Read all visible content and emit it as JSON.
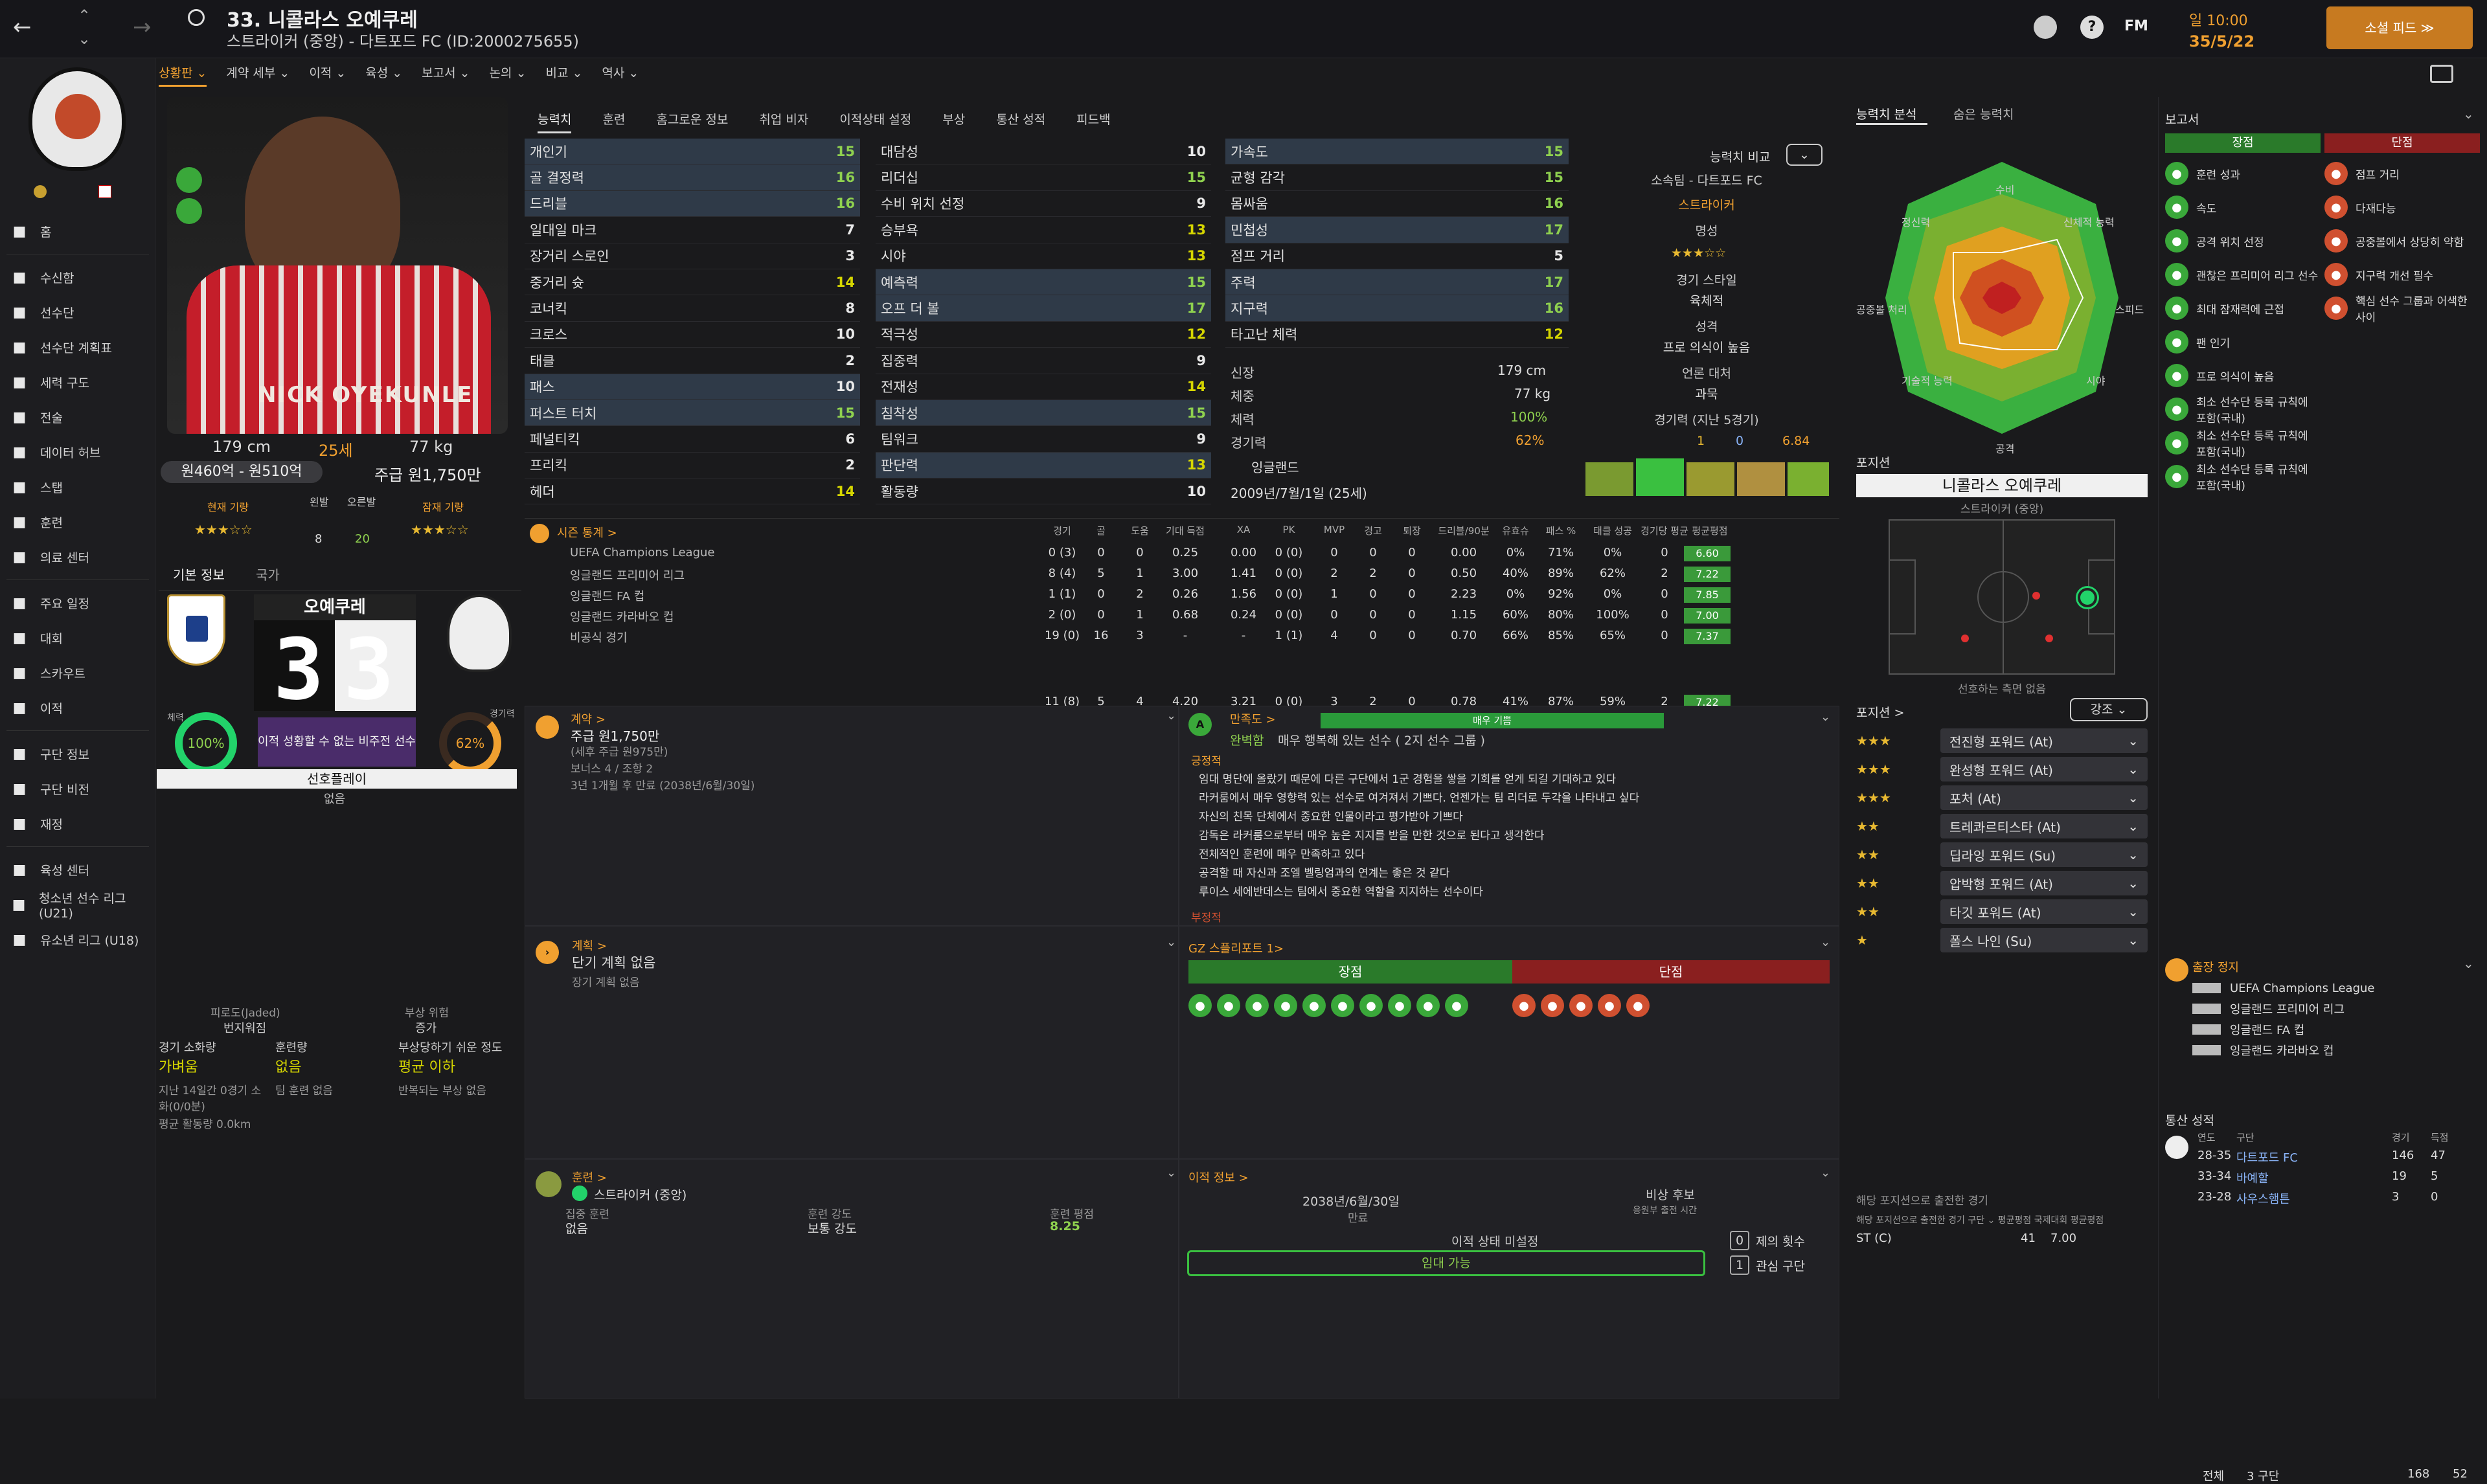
{
  "header": {
    "player_number_name": "33. 니콜라스 오예쿠레",
    "subtitle": "스트라이커 (중앙) - 다트포드 FC (ID:2000275655)",
    "fm_label": "FM",
    "date_top": "일 10:00",
    "date_bottom": "35/5/22",
    "continue_button": "소셜 피드 ≫"
  },
  "nav": {
    "items": [
      {
        "label": "홈",
        "icon": "home-icon"
      },
      {
        "label": "수신함",
        "icon": "inbox-icon"
      },
      {
        "label": "선수단",
        "icon": "squad-icon"
      },
      {
        "label": "선수단 계획표",
        "icon": "planner-icon"
      },
      {
        "label": "세력 구도",
        "icon": "dynamics-icon"
      },
      {
        "label": "전술",
        "icon": "tactics-icon"
      },
      {
        "label": "데이터 허브",
        "icon": "data-hub-icon"
      },
      {
        "label": "스탭",
        "icon": "staff-icon"
      },
      {
        "label": "훈련",
        "icon": "training-icon"
      },
      {
        "label": "의료 센터",
        "icon": "medical-icon"
      },
      {
        "label": "주요 일정",
        "icon": "schedule-icon"
      },
      {
        "label": "대회",
        "icon": "trophy-icon"
      },
      {
        "label": "스카우트",
        "icon": "scouting-icon"
      },
      {
        "label": "이적",
        "icon": "transfer-icon"
      },
      {
        "label": "구단 정보",
        "icon": "club-info-icon"
      },
      {
        "label": "구단 비전",
        "icon": "club-vision-icon"
      },
      {
        "label": "재정",
        "icon": "finance-icon"
      },
      {
        "label": "육성 센터",
        "icon": "development-icon"
      },
      {
        "label": "청소년 선수 리그 (U21)",
        "icon": "u21-icon"
      },
      {
        "label": "유소년 리그 (U18)",
        "icon": "u18-icon"
      }
    ]
  },
  "subnav": [
    "상황판 ⌄",
    "계약 세부 ⌄",
    "이적 ⌄",
    "육성 ⌄",
    "보고서 ⌄",
    "논의 ⌄",
    "비교 ⌄",
    "역사 ⌄"
  ],
  "tabs": [
    "능력치",
    "훈련",
    "홈그로운 정보",
    "취업 비자",
    "이적상태 설정",
    "부상",
    "통산 성적",
    "피드백"
  ],
  "player": {
    "height": "179 cm",
    "age": "25세",
    "weight": "77 kg",
    "value": "원460억 - 원510억",
    "wage": "주급 원1,750만",
    "current_ability_label": "현재 기량",
    "potential_label": "잠재 기량",
    "left_foot_label": "왼발",
    "right_foot_label": "오른발",
    "left_foot_value": "8",
    "right_foot_value": "20",
    "shirt_name": "NICK OYEKUNLE",
    "squad_number": "33",
    "squad_name": "오예쿠레",
    "basic_tab": "기본 정보",
    "nation_tab": "국가",
    "fitness_pct": "100%",
    "fitness_label": "체력",
    "sharpness_pct": "62%",
    "sharpness_label": "경기력",
    "transfer_banner": "이적 성황할 수 없는 비주전 선수",
    "preferred_play": "선호플레이",
    "preferred_value": "없음",
    "jaded_label": "피로도(Jaded)",
    "jaded_value": "번지워짐",
    "injury_label": "부상 위험",
    "injury_value": "증가",
    "match_load_label": "경기 소화량",
    "match_load_value": "가벼움",
    "training_load_label": "훈련량",
    "training_load_value": "없음",
    "injury_prone_label": "부상당하기 쉬운 정도",
    "injury_prone_value": "평균 이하",
    "match_note": "지난 14일간 0경기 소화(0/0분)",
    "training_note": "팀 훈련 없음",
    "injury_note": "반복되는 부상 없음",
    "distance": "평균 활동량 0.0km"
  },
  "attributes": {
    "technical": [
      {
        "name": "개인기",
        "value": "15",
        "cls": "g",
        "hl": true
      },
      {
        "name": "골 결정력",
        "value": "16",
        "cls": "g",
        "hl": true
      },
      {
        "name": "드리블",
        "value": "16",
        "cls": "g",
        "hl": true
      },
      {
        "name": "일대일 마크",
        "value": "7",
        "cls": "w",
        "hl": false
      },
      {
        "name": "장거리 스로인",
        "value": "3",
        "cls": "w",
        "hl": false
      },
      {
        "name": "중거리 슛",
        "value": "14",
        "cls": "y",
        "hl": false
      },
      {
        "name": "코너킥",
        "value": "8",
        "cls": "w",
        "hl": false
      },
      {
        "name": "크로스",
        "value": "10",
        "cls": "w",
        "hl": false
      },
      {
        "name": "태클",
        "value": "2",
        "cls": "w",
        "hl": false
      },
      {
        "name": "패스",
        "value": "10",
        "cls": "w",
        "hl": true
      },
      {
        "name": "퍼스트 터치",
        "value": "15",
        "cls": "g",
        "hl": true
      },
      {
        "name": "페널티킥",
        "value": "6",
        "cls": "w",
        "hl": false
      },
      {
        "name": "프리킥",
        "value": "2",
        "cls": "w",
        "hl": false
      },
      {
        "name": "헤더",
        "value": "14",
        "cls": "y",
        "hl": false
      }
    ],
    "mental": [
      {
        "name": "대담성",
        "value": "10",
        "cls": "w",
        "hl": false
      },
      {
        "name": "리더십",
        "value": "15",
        "cls": "g",
        "hl": false
      },
      {
        "name": "수비 위치 선정",
        "value": "9",
        "cls": "w",
        "hl": false
      },
      {
        "name": "승부욕",
        "value": "13",
        "cls": "y",
        "hl": false
      },
      {
        "name": "시야",
        "value": "13",
        "cls": "y",
        "hl": false
      },
      {
        "name": "예측력",
        "value": "15",
        "cls": "g",
        "hl": true
      },
      {
        "name": "오프 더 볼",
        "value": "17",
        "cls": "g",
        "hl": true
      },
      {
        "name": "적극성",
        "value": "12",
        "cls": "y",
        "hl": false
      },
      {
        "name": "집중력",
        "value": "9",
        "cls": "w",
        "hl": false
      },
      {
        "name": "전재성",
        "value": "14",
        "cls": "y",
        "hl": false
      },
      {
        "name": "침착성",
        "value": "15",
        "cls": "g",
        "hl": true
      },
      {
        "name": "팀워크",
        "value": "9",
        "cls": "w",
        "hl": false
      },
      {
        "name": "판단력",
        "value": "13",
        "cls": "y",
        "hl": true
      },
      {
        "name": "활동량",
        "value": "10",
        "cls": "w",
        "hl": false
      }
    ],
    "physical": [
      {
        "name": "가속도",
        "value": "15",
        "cls": "g",
        "hl": true
      },
      {
        "name": "균형 감각",
        "value": "15",
        "cls": "g",
        "hl": false
      },
      {
        "name": "몸싸움",
        "value": "16",
        "cls": "g",
        "hl": false
      },
      {
        "name": "민첩성",
        "value": "17",
        "cls": "g",
        "hl": true
      },
      {
        "name": "점프 거리",
        "value": "5",
        "cls": "w",
        "hl": false
      },
      {
        "name": "주력",
        "value": "17",
        "cls": "g",
        "hl": true
      },
      {
        "name": "지구력",
        "value": "16",
        "cls": "g",
        "hl": true
      },
      {
        "name": "타고난 체력",
        "value": "12",
        "cls": "y",
        "hl": false
      }
    ]
  },
  "info": {
    "compare_label": "능력치 비교",
    "club": "소속팀 - 다트포드 FC",
    "position": "스트라이커",
    "fame_label": "명성",
    "style_label": "경기 스타일",
    "style_value": "육체적",
    "personality_label": "성격",
    "personality_value": "프로 의식이 높음",
    "media_label": "언론 대처",
    "media_value": "과묵",
    "form_label": "경기력 (지난 5경기)",
    "goals": "1",
    "assists": "0",
    "rating": "6.84",
    "height_label": "신장",
    "height_value": "179 cm",
    "weight_label": "체중",
    "weight_value": "77 kg",
    "fitness_label": "체력",
    "fitness_value": "100%",
    "sharp_label": "경기력",
    "sharp_value": "62%",
    "nation": "잉글랜드",
    "dob": "2009년/7월/1일 (25세)"
  },
  "stats": {
    "title": "시즌 통계 >",
    "headers": [
      "경기",
      "골",
      "도움",
      "기대 득점",
      "XA",
      "PK",
      "MVP",
      "경고",
      "퇴장",
      "드리블/90분",
      "유효슈",
      "패스 %",
      "태클 성공",
      "경기당 평균",
      "평균평점"
    ],
    "rows": [
      {
        "comp": "UEFA Champions League",
        "v": [
          "0 (3)",
          "0",
          "0",
          "0.25",
          "0.00",
          "0 (0)",
          "0",
          "0",
          "0",
          "0.00",
          "0%",
          "71%",
          "0%",
          "0"
        ],
        "r": "6.60"
      },
      {
        "comp": "잉글랜드 프리미어 리그",
        "v": [
          "8 (4)",
          "5",
          "1",
          "3.00",
          "1.41",
          "0 (0)",
          "2",
          "2",
          "0",
          "0.50",
          "40%",
          "89%",
          "62%",
          "2"
        ],
        "r": "7.22"
      },
      {
        "comp": "잉글랜드 FA 컵",
        "v": [
          "1 (1)",
          "0",
          "2",
          "0.26",
          "1.56",
          "0 (0)",
          "1",
          "0",
          "0",
          "2.23",
          "0%",
          "92%",
          "0%",
          "0"
        ],
        "r": "7.85"
      },
      {
        "comp": "잉글랜드 카라바오 컵",
        "v": [
          "2 (0)",
          "0",
          "1",
          "0.68",
          "0.24",
          "0 (0)",
          "0",
          "0",
          "0",
          "1.15",
          "60%",
          "80%",
          "100%",
          "0"
        ],
        "r": "7.00"
      },
      {
        "comp": "비공식 경기",
        "v": [
          "19 (0)",
          "16",
          "3",
          "-",
          "-",
          "1 (1)",
          "4",
          "0",
          "0",
          "0.70",
          "66%",
          "85%",
          "65%",
          "0"
        ],
        "r": "7.37"
      }
    ],
    "total": {
      "v": [
        "11 (8)",
        "5",
        "4",
        "4.20",
        "3.21",
        "0 (0)",
        "3",
        "2",
        "0",
        "0.78",
        "41%",
        "87%",
        "59%",
        "2"
      ],
      "r": "7.22"
    }
  },
  "contract": {
    "title": "계약 >",
    "wage": "주급 원1,750만",
    "tax": "(세후 주급 원975만)",
    "bonus": "보너스 4 / 조항 2",
    "expiry": "3년 1개월 후 만료 (2038년/6월/30일)"
  },
  "happiness": {
    "title": "만족도 >",
    "level": "매우 기쁨",
    "status_label": "완벽함",
    "status_text": "매우 행복해 있는 선수 ( 2지 선수 그룹 )",
    "positive_label": "긍정적",
    "negative_label": "부정적",
    "items": [
      "임대 명단에 올랐기 때문에 다른 구단에서 1군 경험을 쌓을 기회를 얻게 되길 기대하고 있다",
      "라커룸에서 매우 영향력 있는 선수로 여겨져서 기쁘다. 언젠가는 팀 리더로 두각을 나타내고 싶다",
      "자신의 친목 단체에서 중요한 인물이라고 평가받아 기쁘다",
      "감독은 라커룸으로부터 매우 높은 지지를 받을 만한 것으로 된다고 생각한다",
      "전체적인 훈련에 매우 만족하고 있다",
      "공격할 때 자신과 조엘 벨링엄과의 연계는 좋은 것 같다",
      "루이스 세에반데스는 팀에서 중요한 역할을 지지하는 선수이다"
    ]
  },
  "plans": {
    "title": "계획 >",
    "short": "단기 계획 없음",
    "long": "장기 계획 없음"
  },
  "scout": {
    "title": "GZ 스플리포트 1>",
    "strengths": "장점",
    "weaknesses": "단점"
  },
  "training": {
    "title": "훈련 >",
    "position": "스트라이커 (중앙)",
    "focus_label": "집중 훈련",
    "focus_value": "없음",
    "intensity_label": "훈련 강도",
    "intensity_value": "보통 강도",
    "rating_label": "훈련 평점",
    "rating_value": "8.25"
  },
  "transfer": {
    "title": "이적 정보 >",
    "date": "2038년/6월/30일",
    "expiry_label": "만료",
    "status_label": "비상 후보",
    "status_sub": "응원부 출전 시간",
    "transfer_status": "이적 상태 미설정",
    "loan_button": "임대 가능",
    "offers_count": "0",
    "offers_label": "제의 횟수",
    "interest_count": "1",
    "interest_label": "관심 구단"
  },
  "analysis": {
    "tab1": "능력치 분석",
    "tab2": "숨은 능력치",
    "radar_labels": [
      "수비",
      "신체적 능력",
      "스피드",
      "시야",
      "공격",
      "기술적 능력",
      "공중볼 처리",
      "정신력"
    ]
  },
  "position": {
    "title": "포지션",
    "name": "니콜라스 오예쿠레",
    "sub": "스트라이커 (중앙)",
    "pref_note": "선호하는 측면 없음",
    "roles_title": "포지션 >",
    "emphasize": "강조 ⌄",
    "roles": [
      {
        "stars": "★★★",
        "name": "전진형 포워드 (At)"
      },
      {
        "stars": "★★★",
        "name": "완성형 포워드 (At)"
      },
      {
        "stars": "★★★",
        "name": "포처 (At)"
      },
      {
        "stars": "★★",
        "name": "트레콰르티스타 (At)"
      },
      {
        "stars": "★★",
        "name": "딥라잉 포워드 (Su)"
      },
      {
        "stars": "★★",
        "name": "압박형 포워드 (At)"
      },
      {
        "stars": "★★",
        "name": "타깃 포워드 (At)"
      },
      {
        "stars": "★",
        "name": "폴스 나인 (Su)"
      }
    ],
    "apps_title": "해당 포지션으로 출전한 경기",
    "apps_header": "해당 포지션으로 출전한 경기   구단 ⌄ 평균평점 국제대회 평균평점",
    "apps_row_pos": "ST (C)",
    "apps_row_games": "41",
    "apps_row_rating": "7.00"
  },
  "report": {
    "title": "보고서",
    "strengths_label": "장점",
    "weaknesses_label": "단점",
    "strengths": [
      "훈련 성과",
      "속도",
      "공격 위치 선정",
      "괜찮은 프리미어 리그 선수",
      "최대 잠재력에 근접",
      "팬 인기",
      "프로 의식이 높음",
      "최소 선수단 등록 규칙에 포함(국내)",
      "최소 선수단 등록 규칙에 포함(국내)",
      "최소 선수단 등록 규칙에 포함(국내)"
    ],
    "weaknesses": [
      "점프 거리",
      "다재다능",
      "공중볼에서 상당히 약함",
      "지구력 개선 필수",
      "핵심 선수 그룹과 어색한 사이"
    ]
  },
  "suspension": {
    "title": "출장 정지",
    "items": [
      "UEFA Champions League",
      "잉글랜드 프리미어 리그",
      "잉글랜드 FA 컵",
      "잉글랜드 카라바오 컵"
    ]
  },
  "career": {
    "title": "통산 성적",
    "headers": [
      "연도",
      "구단",
      "경기",
      "득점"
    ],
    "rows": [
      {
        "year": "28-35",
        "club": "다트포드 FC",
        "games": "146",
        "goals": "47"
      },
      {
        "year": "33-34",
        "club": "바예할",
        "games": "19",
        "goals": "5"
      },
      {
        "year": "23-28",
        "club": "사우스햄튼",
        "games": "3",
        "goals": "0"
      }
    ],
    "total_label": "전체",
    "total_clubs": "3 구단",
    "total_games": "168",
    "total_goals": "52"
  },
  "colors": {
    "accent": "#f0a030",
    "green": "#8fd14f",
    "yellow": "#d6d600",
    "highlight": "#2f3a48"
  }
}
